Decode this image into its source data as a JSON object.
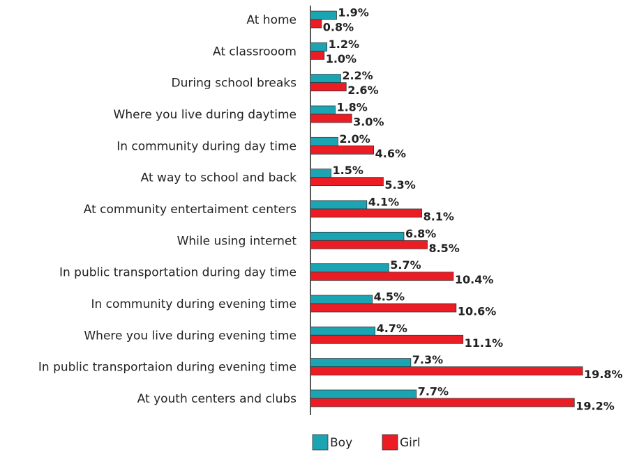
{
  "chart_data": {
    "type": "bar",
    "orientation": "horizontal",
    "categories": [
      "At home",
      "At classrooom",
      "During school breaks",
      "Where you live during daytime",
      "In community during day time",
      "At way to school and back",
      "At community entertaiment centers",
      "While using internet",
      "In public transportation during day time",
      "In community during evening time",
      "Where you live during evening time",
      "In public transportaion during evening time",
      "At youth centers and clubs"
    ],
    "series": [
      {
        "name": "Boy",
        "color": "#1ba5b3",
        "values": [
          1.9,
          1.2,
          2.2,
          1.8,
          2.0,
          1.5,
          4.1,
          6.8,
          5.7,
          4.5,
          4.7,
          7.3,
          7.7
        ],
        "value_labels": [
          "1.9%",
          "1.2%",
          "2.2%",
          "1.8%",
          "2.0%",
          "1.5%",
          "4.1%",
          "6.8%",
          "5.7%",
          "4.5%",
          "4.7%",
          "7.3%",
          "7.7%"
        ]
      },
      {
        "name": "Girl",
        "color": "#ec1c24",
        "values": [
          0.8,
          1.0,
          2.6,
          3.0,
          4.6,
          5.3,
          8.1,
          8.5,
          10.4,
          10.6,
          11.1,
          19.8,
          19.2
        ],
        "value_labels": [
          "0.8%",
          "1.0%",
          "2.6%",
          "3.0%",
          "4.6%",
          "5.3%",
          "8.1%",
          "8.5%",
          "10.4%",
          "10.6%",
          "11.1%",
          "19.8%",
          "19.2%"
        ]
      }
    ],
    "xlim": [
      0,
      20
    ],
    "legend": "bottom"
  }
}
